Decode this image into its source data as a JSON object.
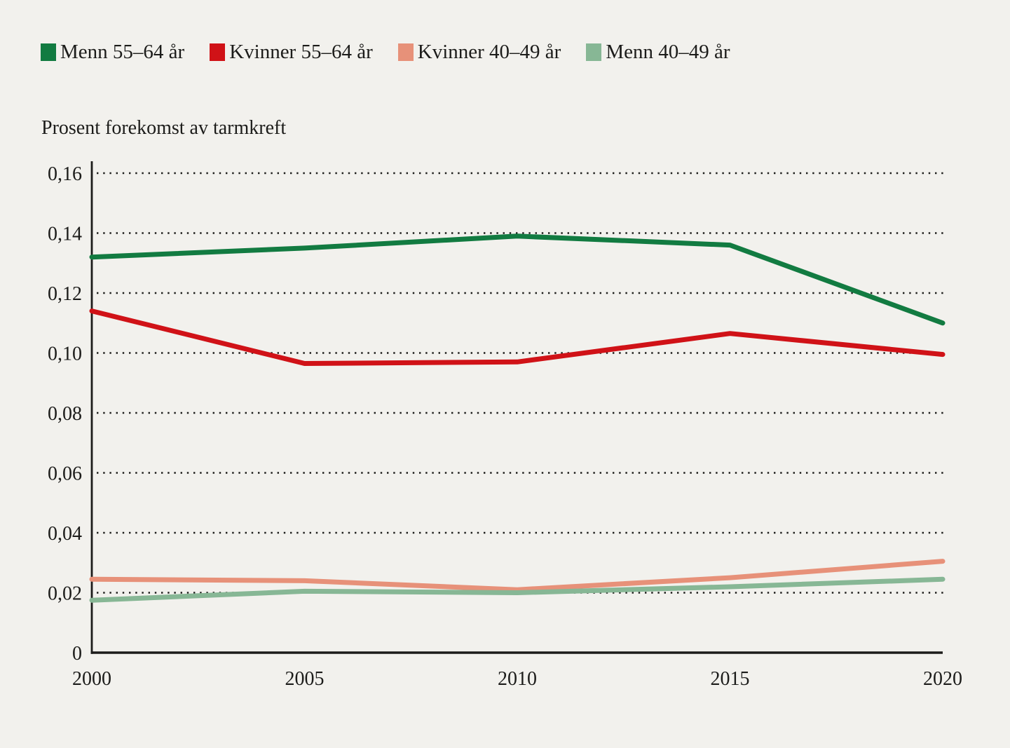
{
  "page": {
    "background_color": "#f2f1ed",
    "text_color": "#1c1c1a"
  },
  "legend": {
    "items": [
      {
        "label": "Menn 55–64 år",
        "color": "#127b41"
      },
      {
        "label": "Kvinner 55–64 år",
        "color": "#d01217"
      },
      {
        "label": "Kvinner 40–49 år",
        "color": "#e79179"
      },
      {
        "label": "Menn 40–49 år",
        "color": "#87b795"
      }
    ]
  },
  "chart_data": {
    "type": "line",
    "title": "Prosent forekomst av tarmkreft",
    "xlabel": "",
    "ylabel": "Prosent forekomst av tarmkreft",
    "x": [
      2000,
      2005,
      2010,
      2015,
      2020
    ],
    "x_tick_labels": [
      "2000",
      "2005",
      "2010",
      "2015",
      "2020"
    ],
    "y_tick_labels": [
      "0",
      "0,02",
      "0,04",
      "0,06",
      "0,08",
      "0,10",
      "0,12",
      "0,14",
      "0,16"
    ],
    "ylim": [
      0,
      0.16
    ],
    "y_tick_step": 0.02,
    "grid": "horizontal dotted",
    "legend_position": "top-left",
    "series": [
      {
        "name": "Menn 55–64 år",
        "color": "#127b41",
        "values": [
          0.132,
          0.135,
          0.139,
          0.136,
          0.11
        ]
      },
      {
        "name": "Kvinner 55–64 år",
        "color": "#d01217",
        "values": [
          0.114,
          0.0965,
          0.097,
          0.1065,
          0.0995
        ]
      },
      {
        "name": "Kvinner 40–49 år",
        "color": "#e79179",
        "values": [
          0.0245,
          0.024,
          0.021,
          0.025,
          0.0305
        ]
      },
      {
        "name": "Menn 40–49 år",
        "color": "#87b795",
        "values": [
          0.0175,
          0.0205,
          0.02,
          0.022,
          0.0245
        ]
      }
    ]
  }
}
